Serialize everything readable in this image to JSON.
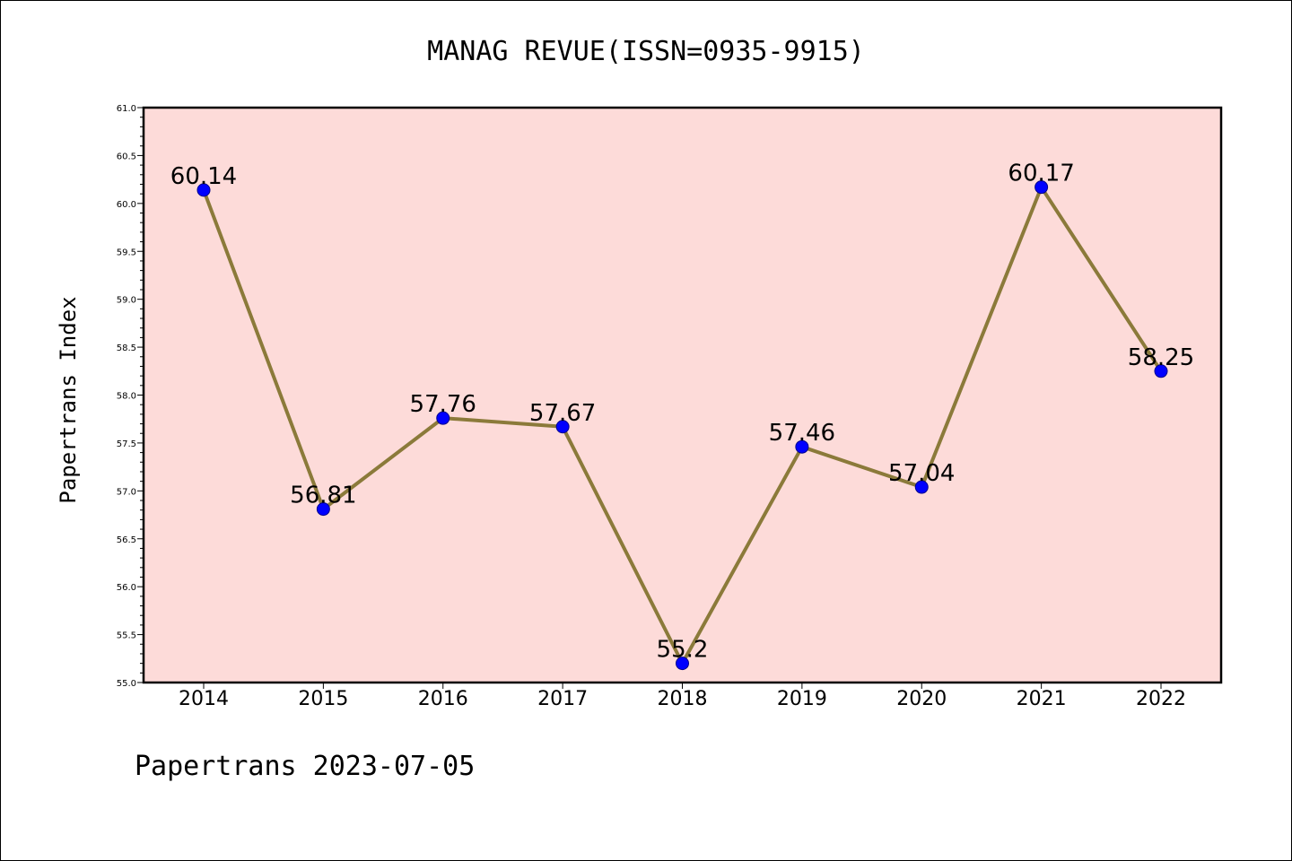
{
  "colors": {
    "plot_background": "#fddbd9",
    "line": "#8b7a3a",
    "marker_fill": "#0000ff",
    "marker_stroke": "#00008b",
    "axis": "#000000"
  },
  "footer": "Papertrans 2023-07-05",
  "chart_data": {
    "type": "line",
    "title": "MANAG REVUE(ISSN=0935-9915)",
    "xlabel": "",
    "ylabel": "Papertrans Index",
    "categories": [
      "2014",
      "2015",
      "2016",
      "2017",
      "2018",
      "2019",
      "2020",
      "2021",
      "2022"
    ],
    "series": [
      {
        "values": [
          60.14,
          56.81,
          57.76,
          57.67,
          55.2,
          57.46,
          57.04,
          60.17,
          58.25
        ],
        "data_labels": [
          "60.14",
          "56.81",
          "57.76",
          "57.67",
          "55.2",
          "57.46",
          "57.04",
          "60.17",
          "58.25"
        ]
      }
    ],
    "ylim": [
      55.0,
      61.0
    ],
    "yticks": [
      "55.0",
      "55.5",
      "56.0",
      "56.5",
      "57.0",
      "57.5",
      "58.0",
      "58.5",
      "59.0",
      "59.5",
      "60.0",
      "60.5",
      "61.0"
    ],
    "grid": false,
    "legend": "none"
  }
}
